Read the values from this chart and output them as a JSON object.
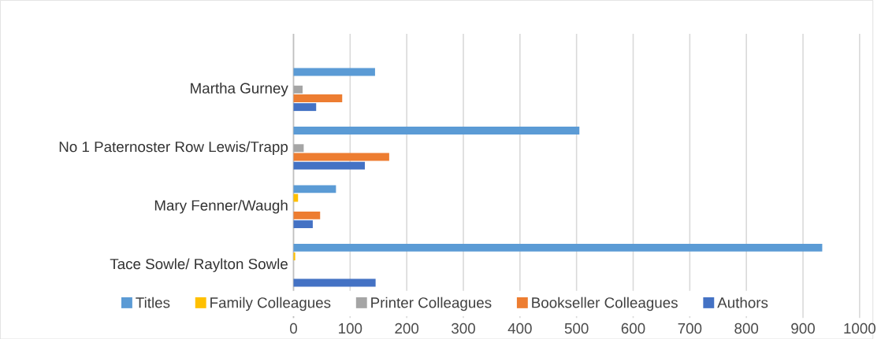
{
  "chart_data": {
    "type": "bar",
    "orientation": "horizontal",
    "categories": [
      "Martha Gurney",
      "No 1 Paternoster Row Lewis/Trapp",
      "Mary Fenner/Waugh",
      "Tace Sowle/ Raylton Sowle"
    ],
    "series": [
      {
        "name": "Authors",
        "color": "#4472c4",
        "values": [
          40,
          126,
          34,
          145
        ]
      },
      {
        "name": "Bookseller Colleagues",
        "color": "#ed7d31",
        "values": [
          86,
          169,
          47,
          0
        ]
      },
      {
        "name": "Printer Colleagues",
        "color": "#a5a5a5",
        "values": [
          16,
          18,
          0,
          0
        ]
      },
      {
        "name": "Family Colleagues",
        "color": "#ffc000",
        "values": [
          0,
          0,
          8,
          3
        ]
      },
      {
        "name": "Titles",
        "color": "#5b9bd5",
        "values": [
          144,
          505,
          75,
          934
        ]
      }
    ],
    "xlim": [
      0,
      1000
    ],
    "xticks": [
      0,
      100,
      200,
      300,
      400,
      500,
      600,
      700,
      800,
      900,
      1000
    ],
    "grid": "x",
    "legend": "bottom"
  }
}
